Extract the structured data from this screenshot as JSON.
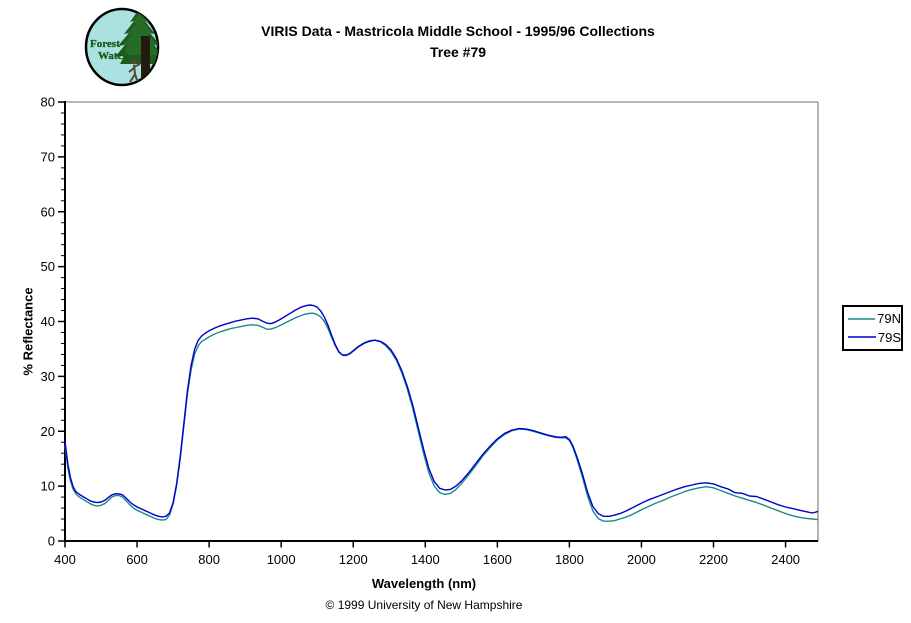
{
  "header": {
    "title_line1": "VIRIS Data - Mastricola Middle School - 1995/96 Collections",
    "title_line2": "Tree #79",
    "logo": {
      "word1": "Forest",
      "word2": "Watch",
      "bg_color": "#a9e2e0",
      "tree_color": "#1d5c1d",
      "text_color": "#1d6b1d"
    }
  },
  "legend": {
    "items": [
      {
        "label": "79N",
        "color": "#1b8a8a"
      },
      {
        "label": "79S",
        "color": "#0000cc"
      }
    ]
  },
  "footer": {
    "xlabel": "Wavelength (nm)",
    "copyright": "© 1999 University of New Hampshire"
  },
  "chart_data": {
    "type": "line",
    "title": "VIRIS Data - Mastricola Middle School - 1995/96 Collections — Tree #79",
    "xlabel": "Wavelength (nm)",
    "ylabel": "% Reflectance",
    "xlim": [
      400,
      2490
    ],
    "ylim": [
      0,
      80
    ],
    "x_ticks": [
      400,
      600,
      800,
      1000,
      1200,
      1400,
      1600,
      1800,
      2000,
      2200,
      2400
    ],
    "y_ticks": [
      0,
      10,
      20,
      30,
      40,
      50,
      60,
      70,
      80
    ],
    "y_minor_step": 2,
    "grid": false,
    "legend_position": "right-outside",
    "axis_color": "#000000",
    "frame_color": "#8c8c8c",
    "x": [
      400,
      408,
      415,
      422,
      430,
      440,
      450,
      460,
      470,
      480,
      490,
      500,
      510,
      520,
      530,
      540,
      550,
      560,
      570,
      580,
      590,
      600,
      610,
      620,
      630,
      640,
      650,
      660,
      670,
      680,
      690,
      700,
      710,
      720,
      730,
      740,
      750,
      760,
      770,
      780,
      790,
      800,
      815,
      830,
      845,
      860,
      875,
      890,
      905,
      920,
      935,
      950,
      960,
      970,
      980,
      995,
      1010,
      1025,
      1040,
      1055,
      1070,
      1080,
      1090,
      1100,
      1110,
      1120,
      1130,
      1140,
      1150,
      1160,
      1170,
      1180,
      1190,
      1200,
      1215,
      1230,
      1245,
      1260,
      1275,
      1290,
      1305,
      1320,
      1335,
      1350,
      1365,
      1380,
      1395,
      1410,
      1425,
      1440,
      1455,
      1470,
      1485,
      1500,
      1520,
      1540,
      1560,
      1580,
      1600,
      1620,
      1640,
      1660,
      1680,
      1700,
      1720,
      1740,
      1760,
      1775,
      1790,
      1800,
      1810,
      1820,
      1835,
      1850,
      1865,
      1880,
      1895,
      1910,
      1925,
      1940,
      1955,
      1970,
      1985,
      2000,
      2020,
      2040,
      2060,
      2080,
      2100,
      2120,
      2140,
      2160,
      2180,
      2200,
      2220,
      2240,
      2260,
      2280,
      2300,
      2320,
      2340,
      2360,
      2380,
      2400,
      2420,
      2440,
      2460,
      2475,
      2490
    ],
    "series": [
      {
        "name": "79N",
        "color": "#1b8a8a",
        "values": [
          17.4,
          13.2,
          11.0,
          9.5,
          8.6,
          8.0,
          7.6,
          7.2,
          6.8,
          6.5,
          6.4,
          6.5,
          6.8,
          7.4,
          8.0,
          8.3,
          8.3,
          8.0,
          7.3,
          6.6,
          6.0,
          5.6,
          5.3,
          5.0,
          4.7,
          4.4,
          4.1,
          3.9,
          3.8,
          3.9,
          4.7,
          6.7,
          10.2,
          15.1,
          21.0,
          26.9,
          31.2,
          34.1,
          35.6,
          36.4,
          36.8,
          37.2,
          37.7,
          38.1,
          38.4,
          38.7,
          38.9,
          39.1,
          39.3,
          39.4,
          39.3,
          38.9,
          38.6,
          38.6,
          38.8,
          39.2,
          39.7,
          40.2,
          40.7,
          41.1,
          41.4,
          41.5,
          41.5,
          41.3,
          40.8,
          40.0,
          38.7,
          37.1,
          35.6,
          34.4,
          33.9,
          33.9,
          34.2,
          34.7,
          35.5,
          36.1,
          36.5,
          36.6,
          36.3,
          35.6,
          34.5,
          32.9,
          30.6,
          27.7,
          24.2,
          20.1,
          16.0,
          12.4,
          10.0,
          8.8,
          8.5,
          8.7,
          9.4,
          10.4,
          12.0,
          13.7,
          15.5,
          17.0,
          18.4,
          19.4,
          20.1,
          20.4,
          20.3,
          20.0,
          19.6,
          19.2,
          18.9,
          18.8,
          18.8,
          18.3,
          17.0,
          15.1,
          11.9,
          8.3,
          5.5,
          4.1,
          3.6,
          3.6,
          3.7,
          4.0,
          4.3,
          4.7,
          5.2,
          5.7,
          6.3,
          6.9,
          7.4,
          8.0,
          8.5,
          9.0,
          9.4,
          9.7,
          9.9,
          9.7,
          9.2,
          8.7,
          8.2,
          7.8,
          7.4,
          7.0,
          6.5,
          6.0,
          5.5,
          5.0,
          4.6,
          4.3,
          4.1,
          4.0,
          3.9
        ]
      },
      {
        "name": "79S",
        "color": "#0000cc",
        "values": [
          18.2,
          14.0,
          11.6,
          10.0,
          9.0,
          8.5,
          8.1,
          7.7,
          7.3,
          7.1,
          7.0,
          7.1,
          7.4,
          7.9,
          8.4,
          8.6,
          8.6,
          8.4,
          7.8,
          7.1,
          6.6,
          6.2,
          5.9,
          5.6,
          5.3,
          5.0,
          4.7,
          4.5,
          4.4,
          4.5,
          5.1,
          7.0,
          10.5,
          15.5,
          21.5,
          27.5,
          32.0,
          35.0,
          36.6,
          37.4,
          37.9,
          38.3,
          38.8,
          39.2,
          39.5,
          39.8,
          40.1,
          40.3,
          40.5,
          40.6,
          40.5,
          40.0,
          39.7,
          39.6,
          39.8,
          40.3,
          40.9,
          41.5,
          42.1,
          42.6,
          42.9,
          43.0,
          42.9,
          42.6,
          41.9,
          40.8,
          39.3,
          37.5,
          35.8,
          34.5,
          33.9,
          33.8,
          34.1,
          34.6,
          35.4,
          36.0,
          36.4,
          36.6,
          36.4,
          35.8,
          34.8,
          33.2,
          31.0,
          28.2,
          24.8,
          20.8,
          16.8,
          13.2,
          10.8,
          9.6,
          9.3,
          9.4,
          10.0,
          10.9,
          12.4,
          14.1,
          15.8,
          17.3,
          18.6,
          19.6,
          20.2,
          20.5,
          20.4,
          20.1,
          19.7,
          19.3,
          19.0,
          18.9,
          19.0,
          18.5,
          17.3,
          15.5,
          12.5,
          9.0,
          6.3,
          5.0,
          4.5,
          4.5,
          4.7,
          5.0,
          5.4,
          5.9,
          6.4,
          6.9,
          7.5,
          8.0,
          8.5,
          9.0,
          9.5,
          9.9,
          10.2,
          10.5,
          10.6,
          10.4,
          9.9,
          9.5,
          8.8,
          8.7,
          8.2,
          8.1,
          7.6,
          7.1,
          6.6,
          6.2,
          5.9,
          5.6,
          5.3,
          5.1,
          5.4
        ]
      }
    ]
  }
}
